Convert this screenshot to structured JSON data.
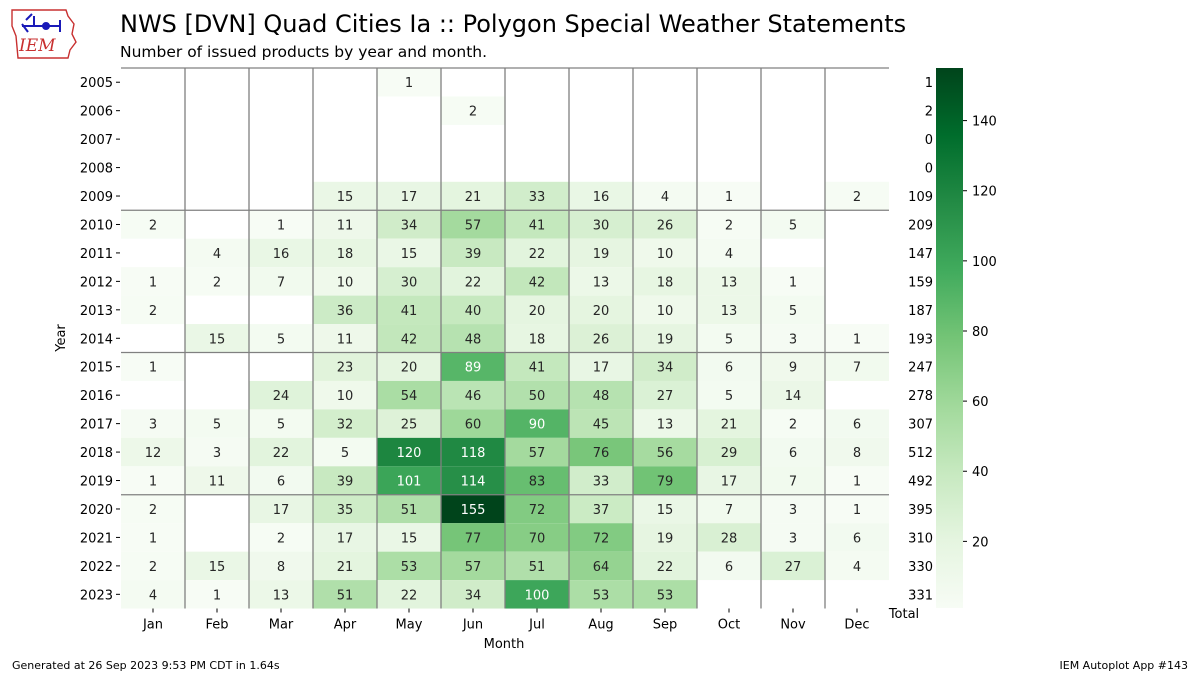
{
  "header": {
    "logo_text": "IEM",
    "title": "NWS [DVN] Quad Cities Ia :: Polygon Special Weather Statements",
    "subtitle": "Number of issued products by year and month."
  },
  "footer": {
    "generated": "Generated at 26 Sep 2023 9:53 PM CDT in 1.64s",
    "app": "IEM Autoplot App #143"
  },
  "colors": {
    "cmap_low": "#f7fcf5",
    "cmap_high": "#00441b",
    "grid_line": "#808080"
  },
  "chart_data": {
    "type": "heatmap",
    "xlabel": "Month",
    "ylabel": "Year",
    "total_label": "Total",
    "months": [
      "Jan",
      "Feb",
      "Mar",
      "Apr",
      "May",
      "Jun",
      "Jul",
      "Aug",
      "Sep",
      "Oct",
      "Nov",
      "Dec"
    ],
    "years": [
      2005,
      2006,
      2007,
      2008,
      2009,
      2010,
      2011,
      2012,
      2013,
      2014,
      2015,
      2016,
      2017,
      2018,
      2019,
      2020,
      2021,
      2022,
      2023
    ],
    "values": [
      [
        null,
        null,
        null,
        null,
        1,
        null,
        null,
        null,
        null,
        null,
        null,
        null
      ],
      [
        null,
        null,
        null,
        null,
        null,
        2,
        null,
        null,
        null,
        null,
        null,
        null
      ],
      [
        null,
        null,
        null,
        null,
        null,
        null,
        null,
        null,
        null,
        null,
        null,
        null
      ],
      [
        null,
        null,
        null,
        null,
        null,
        null,
        null,
        null,
        null,
        null,
        null,
        null
      ],
      [
        null,
        null,
        null,
        15,
        17,
        21,
        33,
        16,
        4,
        1,
        null,
        2
      ],
      [
        2,
        null,
        1,
        11,
        34,
        57,
        41,
        30,
        26,
        2,
        5,
        null
      ],
      [
        null,
        4,
        16,
        18,
        15,
        39,
        22,
        19,
        10,
        4,
        null,
        null
      ],
      [
        1,
        2,
        7,
        10,
        30,
        22,
        42,
        13,
        18,
        13,
        1,
        null
      ],
      [
        2,
        null,
        null,
        36,
        41,
        40,
        20,
        20,
        10,
        13,
        5,
        null
      ],
      [
        null,
        15,
        5,
        11,
        42,
        48,
        18,
        26,
        19,
        5,
        3,
        1
      ],
      [
        1,
        null,
        null,
        23,
        20,
        89,
        41,
        17,
        34,
        6,
        9,
        7
      ],
      [
        null,
        null,
        24,
        10,
        54,
        46,
        50,
        48,
        27,
        5,
        14,
        null
      ],
      [
        3,
        5,
        5,
        32,
        25,
        60,
        90,
        45,
        13,
        21,
        2,
        6
      ],
      [
        12,
        3,
        22,
        5,
        120,
        118,
        57,
        76,
        56,
        29,
        6,
        8
      ],
      [
        1,
        11,
        6,
        39,
        101,
        114,
        83,
        33,
        79,
        17,
        7,
        1
      ],
      [
        2,
        null,
        17,
        35,
        51,
        155,
        72,
        37,
        15,
        7,
        3,
        1
      ],
      [
        1,
        null,
        2,
        17,
        15,
        77,
        70,
        72,
        19,
        28,
        3,
        6
      ],
      [
        2,
        15,
        8,
        21,
        53,
        57,
        51,
        64,
        22,
        6,
        27,
        4
      ],
      [
        4,
        1,
        13,
        51,
        22,
        34,
        100,
        53,
        53,
        null,
        null,
        null
      ]
    ],
    "totals": [
      1,
      2,
      0,
      0,
      109,
      209,
      147,
      159,
      187,
      193,
      247,
      278,
      307,
      512,
      492,
      395,
      310,
      330,
      331
    ],
    "colorbar": {
      "min": 1,
      "max": 155,
      "ticks": [
        20,
        40,
        60,
        80,
        100,
        120,
        140
      ]
    },
    "separator_after_years": [
      2009,
      2014,
      2019
    ]
  }
}
